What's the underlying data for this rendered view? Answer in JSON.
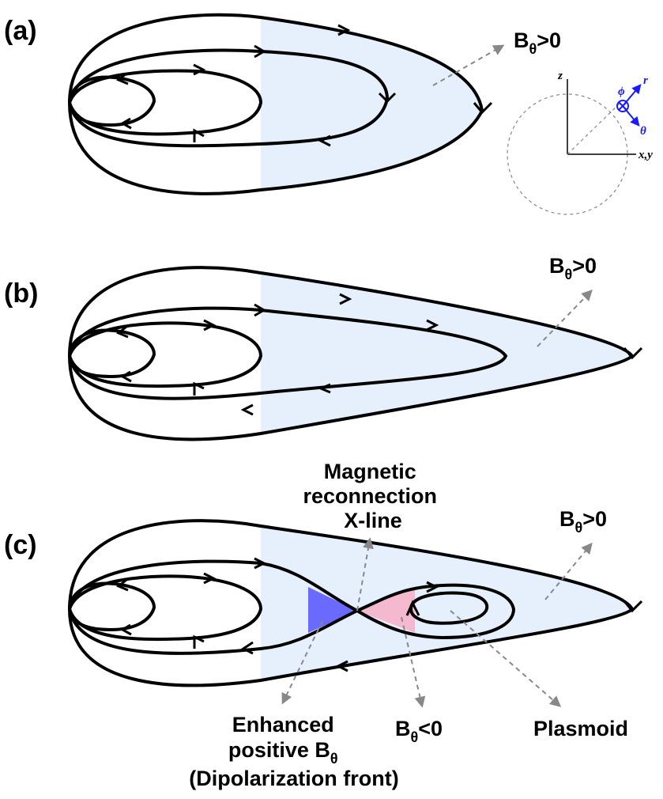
{
  "panels": [
    {
      "label": "(a)",
      "annotation": {
        "base": "B",
        "sub": "θ",
        "rest": ">0"
      }
    },
    {
      "label": "(b)",
      "annotation": {
        "base": "B",
        "sub": "θ",
        "rest": ">0"
      }
    },
    {
      "label": "(c)",
      "annotation": {
        "base": "B",
        "sub": "θ",
        "rest": ">0"
      }
    }
  ],
  "coordinates": {
    "z": "z",
    "xy": "x,y",
    "r": "r",
    "theta": "θ",
    "phi": "ϕ"
  },
  "panel_c": {
    "x_line": [
      "Magnetic",
      "reconnection",
      "X-line"
    ],
    "enhanced": {
      "line1": "Enhanced",
      "line2": "positive B",
      "line2_sub": "θ",
      "line3": "(Dipolarization front)"
    },
    "negative": {
      "base": "B",
      "sub": "θ",
      "rest": "<0"
    },
    "plasmoid": "Plasmoid"
  }
}
